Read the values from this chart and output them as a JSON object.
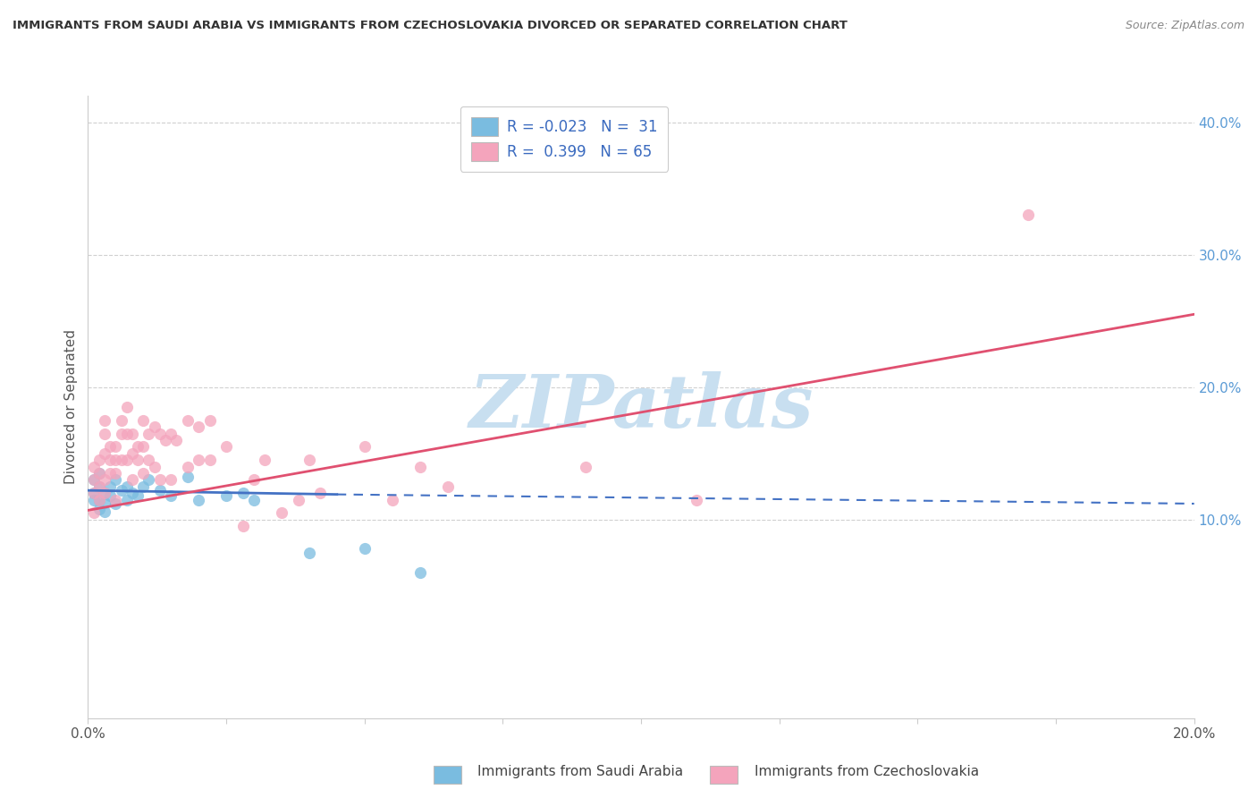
{
  "title": "IMMIGRANTS FROM SAUDI ARABIA VS IMMIGRANTS FROM CZECHOSLOVAKIA DIVORCED OR SEPARATED CORRELATION CHART",
  "source": "Source: ZipAtlas.com",
  "xlabel_blue": "Immigrants from Saudi Arabia",
  "xlabel_pink": "Immigrants from Czechoslovakia",
  "ylabel": "Divorced or Separated",
  "xlim": [
    0.0,
    0.2
  ],
  "ylim": [
    -0.05,
    0.42
  ],
  "R_blue": -0.023,
  "N_blue": 31,
  "R_pink": 0.399,
  "N_pink": 65,
  "color_blue": "#7abce0",
  "color_pink": "#f4a4bc",
  "color_trend_blue": "#4472c4",
  "color_trend_pink": "#e05070",
  "watermark_text": "ZIPatlas",
  "watermark_color": "#c8dff0",
  "blue_x": [
    0.001,
    0.001,
    0.001,
    0.002,
    0.002,
    0.002,
    0.002,
    0.003,
    0.003,
    0.003,
    0.004,
    0.004,
    0.005,
    0.005,
    0.006,
    0.007,
    0.007,
    0.008,
    0.009,
    0.01,
    0.011,
    0.013,
    0.015,
    0.018,
    0.02,
    0.025,
    0.028,
    0.03,
    0.04,
    0.05,
    0.06
  ],
  "blue_y": [
    0.13,
    0.12,
    0.115,
    0.135,
    0.125,
    0.115,
    0.108,
    0.12,
    0.113,
    0.106,
    0.125,
    0.118,
    0.13,
    0.112,
    0.122,
    0.125,
    0.115,
    0.12,
    0.118,
    0.125,
    0.13,
    0.122,
    0.118,
    0.132,
    0.115,
    0.118,
    0.12,
    0.115,
    0.075,
    0.078,
    0.06
  ],
  "pink_x": [
    0.001,
    0.001,
    0.001,
    0.001,
    0.002,
    0.002,
    0.002,
    0.002,
    0.003,
    0.003,
    0.003,
    0.003,
    0.003,
    0.004,
    0.004,
    0.004,
    0.005,
    0.005,
    0.005,
    0.005,
    0.006,
    0.006,
    0.006,
    0.007,
    0.007,
    0.007,
    0.008,
    0.008,
    0.008,
    0.009,
    0.009,
    0.01,
    0.01,
    0.01,
    0.011,
    0.011,
    0.012,
    0.012,
    0.013,
    0.013,
    0.014,
    0.015,
    0.015,
    0.016,
    0.018,
    0.018,
    0.02,
    0.02,
    0.022,
    0.022,
    0.025,
    0.028,
    0.03,
    0.032,
    0.035,
    0.038,
    0.04,
    0.042,
    0.05,
    0.055,
    0.06,
    0.065,
    0.09,
    0.11,
    0.17
  ],
  "pink_y": [
    0.14,
    0.13,
    0.12,
    0.105,
    0.145,
    0.135,
    0.125,
    0.115,
    0.175,
    0.165,
    0.15,
    0.13,
    0.12,
    0.155,
    0.145,
    0.135,
    0.155,
    0.145,
    0.135,
    0.115,
    0.175,
    0.165,
    0.145,
    0.185,
    0.165,
    0.145,
    0.165,
    0.15,
    0.13,
    0.155,
    0.145,
    0.175,
    0.155,
    0.135,
    0.165,
    0.145,
    0.17,
    0.14,
    0.165,
    0.13,
    0.16,
    0.165,
    0.13,
    0.16,
    0.175,
    0.14,
    0.17,
    0.145,
    0.175,
    0.145,
    0.155,
    0.095,
    0.13,
    0.145,
    0.105,
    0.115,
    0.145,
    0.12,
    0.155,
    0.115,
    0.14,
    0.125,
    0.14,
    0.115,
    0.33
  ],
  "trend_blue_x0": 0.0,
  "trend_blue_x_solid_end": 0.045,
  "trend_blue_x_dashed_end": 0.2,
  "trend_blue_y0": 0.122,
  "trend_blue_y_solid_end": 0.119,
  "trend_blue_y_dashed_end": 0.112,
  "trend_pink_x0": 0.0,
  "trend_pink_x1": 0.2,
  "trend_pink_y0": 0.107,
  "trend_pink_y1": 0.255,
  "grid_color": "#d0d0d0",
  "spine_color": "#cccccc",
  "ytick_color": "#5b9bd5",
  "xtick_color": "#555555",
  "ylabel_color": "#555555",
  "title_color": "#333333",
  "source_color": "#888888"
}
